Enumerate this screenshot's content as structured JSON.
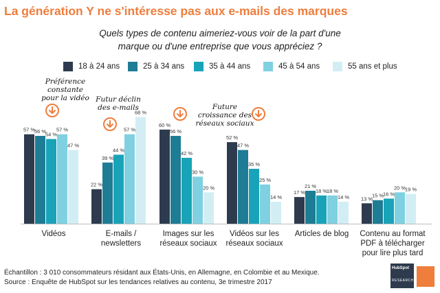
{
  "title": "La génération Y ne s'intéresse pas aux e-mails des marques",
  "question_line1": "Quels types de contenu   aimeriez-vous voir de la part d'une",
  "question_line2": "marque ou d'une entreprise que vous appréciez ?",
  "annotations": {
    "video_pref": [
      "Préférence",
      "constante",
      "pour la vidéo"
    ],
    "email_decline": [
      "Futur déclin",
      "des e-mails"
    ],
    "social_growth": [
      "Future",
      "croissance des",
      "réseaux sociaux"
    ]
  },
  "footer": {
    "line1": "Échantillon : 3 010 consommateurs résidant aux États-Unis, en Allemagne, en Colombie et au Mexique.",
    "line2": "Source : Enquête de HubSpot sur les tendances relatives au contenu, 3e trimestre 2017"
  },
  "logo": {
    "brand": "HubSpot",
    "sub": "RESEARCH"
  },
  "colors": {
    "title": "#ef7d3c",
    "arrow": "#ef7d3c",
    "series": [
      "#2e3b4e",
      "#1e7c95",
      "#19a3b8",
      "#7fd0e0",
      "#d2eef4"
    ]
  },
  "chart_data": {
    "type": "bar",
    "categories": [
      [
        "Vidéos"
      ],
      [
        "E-mails /",
        "newsletters"
      ],
      [
        "Images sur les",
        "réseaux sociaux"
      ],
      [
        "Vidéos sur les",
        "réseaux sociaux"
      ],
      [
        "Articles de blog"
      ],
      [
        "Contenu au format",
        "PDF à télécharger",
        "pour lire plus tard"
      ]
    ],
    "series": [
      {
        "name": "18 à 24 ans",
        "values": [
          57,
          22,
          60,
          52,
          17,
          13
        ]
      },
      {
        "name": "25 à 34 ans",
        "values": [
          56,
          39,
          56,
          47,
          21,
          15
        ]
      },
      {
        "name": "35 à 44 ans",
        "values": [
          54,
          44,
          42,
          35,
          18,
          16
        ]
      },
      {
        "name": "45 à 54 ans",
        "values": [
          57,
          57,
          30,
          25,
          18,
          20
        ]
      },
      {
        "name": "55 ans et plus",
        "values": [
          47,
          68,
          20,
          14,
          14,
          19
        ]
      }
    ],
    "value_suffix": " %",
    "ylim": [
      0,
      70
    ],
    "grid": false,
    "legend": "top"
  }
}
